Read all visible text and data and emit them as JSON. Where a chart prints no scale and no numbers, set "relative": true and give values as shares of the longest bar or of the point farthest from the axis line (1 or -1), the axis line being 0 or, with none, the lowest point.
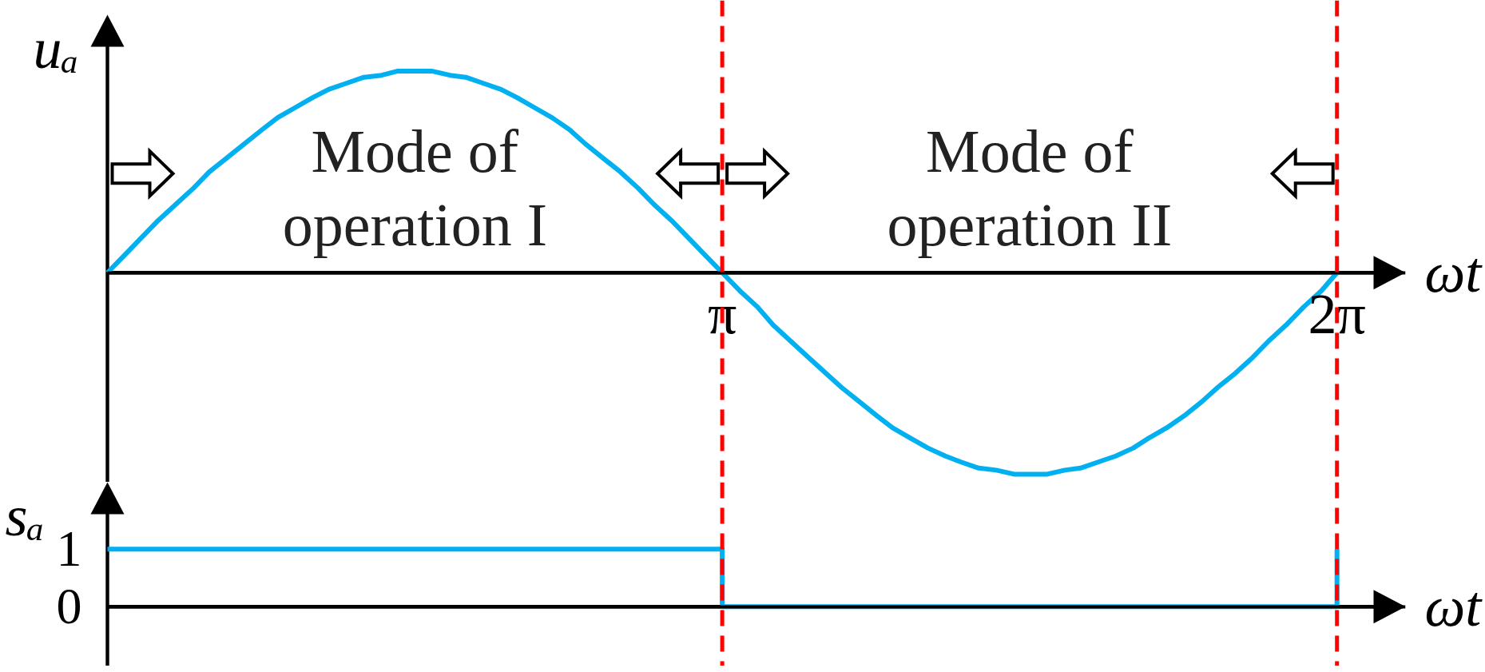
{
  "chart_data": [
    {
      "type": "line",
      "xlabel": "ωt",
      "ylabel": "uₐ",
      "annotations": [
        "Mode of\noperation I",
        "Mode of\noperation II"
      ],
      "x": [
        0,
        0.09,
        0.17,
        0.26,
        0.35,
        0.44,
        0.52,
        0.61,
        0.7,
        0.79,
        0.87,
        0.96,
        1.05,
        1.13,
        1.22,
        1.31,
        1.4,
        1.48,
        1.57,
        1.66,
        1.75,
        1.83,
        1.92,
        2.01,
        2.09,
        2.18,
        2.27,
        2.36,
        2.44,
        2.53,
        2.62,
        2.71,
        2.79,
        2.88,
        2.97,
        3.05,
        3.14,
        3.23,
        3.32,
        3.4,
        3.49,
        3.58,
        3.67,
        3.75,
        3.84,
        3.93,
        4.01,
        4.1,
        4.19,
        4.28,
        4.36,
        4.45,
        4.54,
        4.63,
        4.71,
        4.8,
        4.89,
        4.97,
        5.06,
        5.15,
        5.24,
        5.32,
        5.41,
        5.5,
        5.59,
        5.67,
        5.76,
        5.85,
        5.93,
        6.02,
        6.11,
        6.2,
        6.28
      ],
      "series": [
        {
          "color": "#00b0f0",
          "values": [
            0,
            0.09,
            0.17,
            0.26,
            0.34,
            0.42,
            0.5,
            0.57,
            0.64,
            0.71,
            0.77,
            0.82,
            0.87,
            0.91,
            0.94,
            0.97,
            0.98,
            1,
            1,
            1,
            0.98,
            0.97,
            0.94,
            0.91,
            0.87,
            0.82,
            0.77,
            0.71,
            0.64,
            0.57,
            0.5,
            0.42,
            0.34,
            0.26,
            0.17,
            0.09,
            0,
            -0.09,
            -0.17,
            -0.26,
            -0.34,
            -0.42,
            -0.5,
            -0.57,
            -0.64,
            -0.71,
            -0.77,
            -0.82,
            -0.87,
            -0.91,
            -0.94,
            -0.97,
            -0.98,
            -1,
            -1,
            -1,
            -0.98,
            -0.97,
            -0.94,
            -0.91,
            -0.87,
            -0.82,
            -0.77,
            -0.71,
            -0.64,
            -0.57,
            -0.5,
            -0.42,
            -0.34,
            -0.26,
            -0.17,
            -0.09,
            0
          ]
        }
      ],
      "relative": true,
      "xlim": [
        0,
        6.63
      ],
      "xticks": [
        {
          "value": 3.14,
          "label": "π"
        },
        {
          "value": 6.28,
          "label": "2π"
        }
      ],
      "tick_labels": "x",
      "ref_lines": [
        {
          "axis": "x",
          "value": 3.14,
          "color": "#ff0000",
          "line_style": "dashed"
        },
        {
          "axis": "x",
          "value": 6.28,
          "color": "#ff0000",
          "line_style": "dashed"
        }
      ]
    },
    {
      "type": "step",
      "xlabel": "ωt",
      "ylabel": "sₐ",
      "x": [
        0,
        3.14,
        6.28
      ],
      "series": [
        {
          "color": "#00b0f0",
          "values": [
            1,
            0,
            1
          ]
        }
      ],
      "xlim": [
        0,
        6.63
      ],
      "ylim": [
        -1.03,
        2.16
      ],
      "yticks": [
        0,
        1
      ],
      "tick_labels": "y",
      "ref_lines": [
        {
          "axis": "x",
          "value": 3.14,
          "color": "#ff0000",
          "line_style": "dashed"
        },
        {
          "axis": "x",
          "value": 6.28,
          "color": "#ff0000",
          "line_style": "dashed"
        }
      ]
    }
  ]
}
